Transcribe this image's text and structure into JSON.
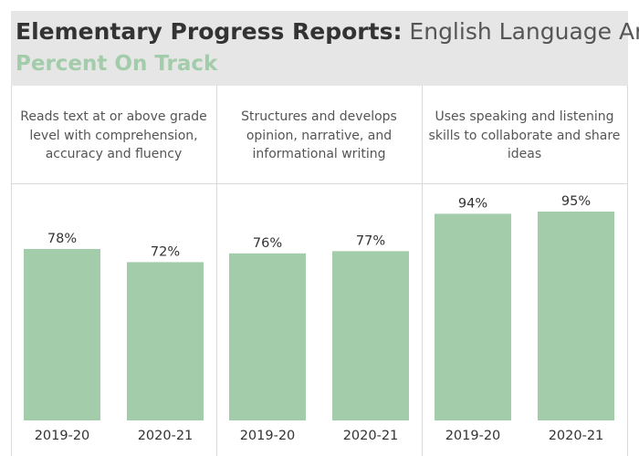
{
  "header": {
    "title_bold": "Elementary Progress Reports:",
    "title_light": "English Language Arts",
    "subtitle": "Percent On Track",
    "subtitle_color": "#a2ccaa"
  },
  "chart_data": {
    "type": "bar",
    "title": "Elementary Progress Reports: English Language Arts",
    "subtitle": "Percent On Track",
    "ylim": [
      0,
      100
    ],
    "bar_color": "#a2ccaa",
    "grid": false,
    "panels": [
      {
        "label": "Reads text at or above grade level with comprehension, accuracy and fluency",
        "categories": [
          "2019-20",
          "2020-21"
        ],
        "values": [
          78,
          72
        ],
        "data_labels": [
          "78%",
          "72%"
        ]
      },
      {
        "label": "Structures and develops opinion, narrative, and informational writing",
        "categories": [
          "2019-20",
          "2020-21"
        ],
        "values": [
          76,
          77
        ],
        "data_labels": [
          "76%",
          "77%"
        ]
      },
      {
        "label": "Uses speaking and listening skills to collaborate and share ideas",
        "categories": [
          "2019-20",
          "2020-21"
        ],
        "values": [
          94,
          95
        ],
        "data_labels": [
          "94%",
          "95%"
        ]
      }
    ]
  }
}
